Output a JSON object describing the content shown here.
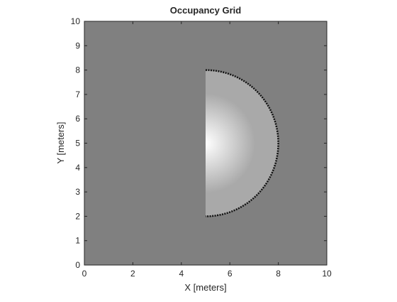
{
  "chart_data": {
    "type": "occupancy",
    "title": "Occupancy Grid",
    "xlabel": "X [meters]",
    "ylabel": "Y [meters]",
    "xlim": [
      0,
      10
    ],
    "ylim": [
      0,
      10
    ],
    "xticks": [
      0,
      2,
      4,
      6,
      8,
      10
    ],
    "yticks": [
      0,
      1,
      2,
      3,
      4,
      5,
      6,
      7,
      8,
      9,
      10
    ],
    "unknown_color": "#808080",
    "free_color": "#a9a9a9",
    "occupied_color": "#111111",
    "free_region": {
      "center": [
        5,
        5
      ],
      "radius": 3
    }
  }
}
